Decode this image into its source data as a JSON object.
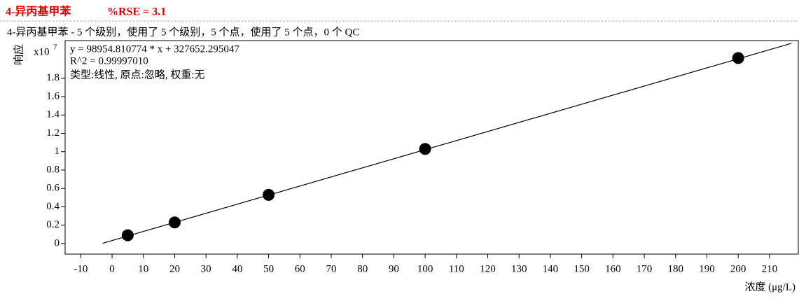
{
  "chart_data": {
    "type": "scatter",
    "title": "4-异丙基甲苯",
    "rse_label": "%RSE = 3.1",
    "subtitle": "4-异丙基甲苯 - 5 个级别，使用了 5 个级别，5 个点，使用了 5 个点，0 个 QC",
    "equation": "y = 98954.810774 * x  + 327652.295047",
    "r_squared": "R^2 = 0.99997010",
    "fit_info": "类型:线性, 原点:忽略, 权重:无",
    "y_label": "响应",
    "y_scale_label": "x10",
    "y_scale_exponent": "7",
    "x_label": "浓度 (μg/L)",
    "x": [
      5,
      20,
      50,
      100,
      200
    ],
    "values": [
      0.09,
      0.23,
      0.53,
      1.03,
      2.02
    ],
    "color": "#000000",
    "fit_line": {
      "x": [
        -3,
        217
      ],
      "values": [
        0.003,
        2.18
      ]
    },
    "xlim": [
      -15,
      219.2
    ],
    "ylim": [
      -0.115,
      2.21
    ],
    "xticks": [
      -10,
      0,
      10,
      20,
      30,
      40,
      50,
      60,
      70,
      80,
      90,
      100,
      110,
      120,
      130,
      140,
      150,
      160,
      170,
      180,
      190,
      200,
      210
    ],
    "yticks": [
      0,
      0.2,
      0.4,
      0.6,
      0.8,
      1,
      1.2,
      1.4,
      1.6,
      1.8
    ]
  }
}
